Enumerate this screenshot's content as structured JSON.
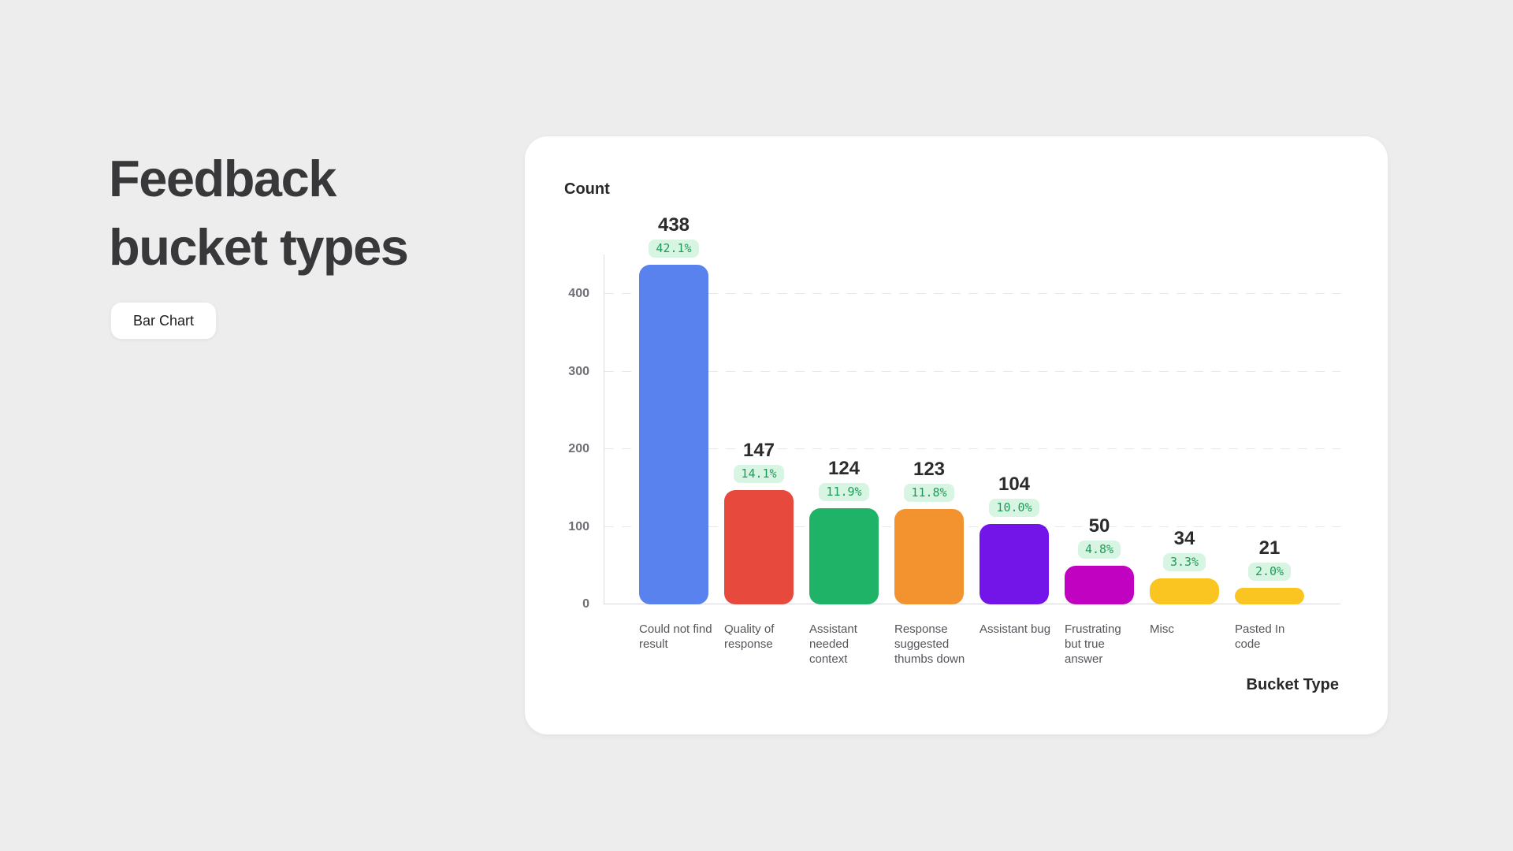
{
  "header": {
    "title": "Feedback bucket types",
    "chart_type_button": "Bar Chart"
  },
  "chart_card": {
    "y_axis_title": "Count",
    "x_axis_title": "Bucket Type",
    "y_ticks": [
      400,
      300,
      200,
      100,
      0
    ]
  },
  "chart_data": {
    "type": "bar",
    "title": "Feedback bucket types",
    "xlabel": "Bucket Type",
    "ylabel": "Count",
    "ylim": [
      0,
      450
    ],
    "grid": true,
    "legend": false,
    "categories": [
      "Could not find result",
      "Quality of response",
      "Assistant needed context",
      "Response suggested thumbs down",
      "Assistant bug",
      "Frustrating but true answer",
      "Misc",
      "Pasted In code"
    ],
    "values": [
      438,
      147,
      124,
      123,
      104,
      50,
      34,
      21
    ],
    "percent_labels": [
      "42.1%",
      "14.1%",
      "11.9%",
      "11.8%",
      "10.0%",
      "4.8%",
      "3.3%",
      "2.0%"
    ],
    "bar_colors": [
      "#5A82EE",
      "#E8493D",
      "#1FB368",
      "#F2932F",
      "#7315E8",
      "#C103C1",
      "#FBC521",
      "#FBC521"
    ]
  },
  "colors": {
    "page_background": "#EDEDED",
    "card_background": "#FFFFFF",
    "percent_badge_background": "#D8F5E3",
    "percent_badge_text": "#1C9D57",
    "bar_blue": "#5A82EE",
    "bar_red": "#E8493D",
    "bar_green": "#1FB368",
    "bar_orange": "#F2932F",
    "bar_purple": "#7315E8",
    "bar_magenta": "#C103C1",
    "bar_yellow": "#FBC521"
  }
}
